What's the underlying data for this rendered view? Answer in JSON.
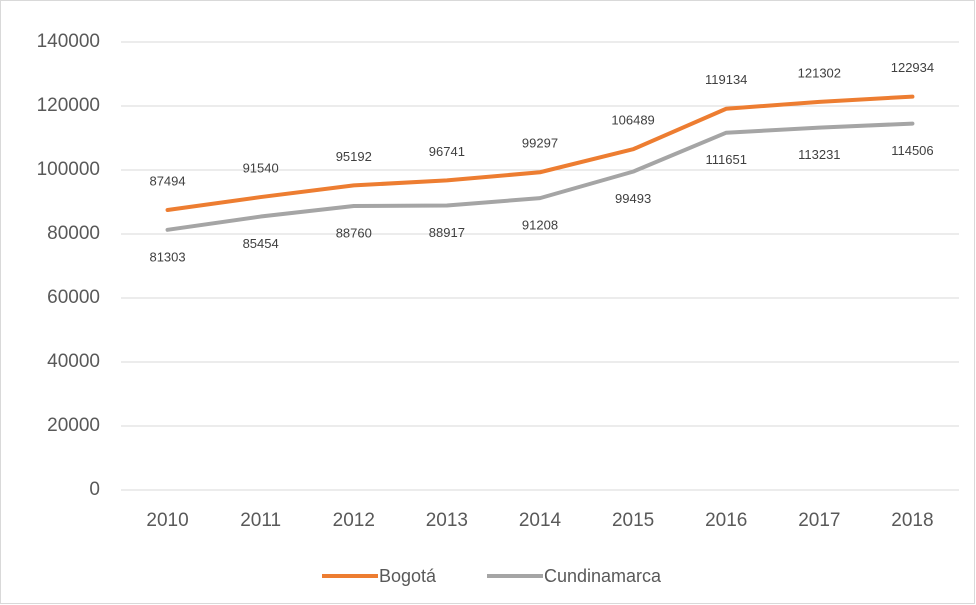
{
  "chart_data": {
    "type": "line",
    "categories": [
      "2010",
      "2011",
      "2012",
      "2013",
      "2014",
      "2015",
      "2016",
      "2017",
      "2018"
    ],
    "series": [
      {
        "name": "Bogotá",
        "color": "#ed7d31",
        "values": [
          87494,
          91540,
          95192,
          96741,
          99297,
          106489,
          119134,
          121302,
          122934
        ]
      },
      {
        "name": "Cundinamarca",
        "color": "#a5a5a5",
        "values": [
          81303,
          85454,
          88760,
          88917,
          91208,
          99493,
          111651,
          113231,
          114506
        ]
      }
    ],
    "ylim": [
      0,
      140000
    ],
    "yticks": [
      0,
      20000,
      40000,
      60000,
      80000,
      100000,
      120000,
      140000
    ],
    "grid": true,
    "legend": "bottom"
  }
}
